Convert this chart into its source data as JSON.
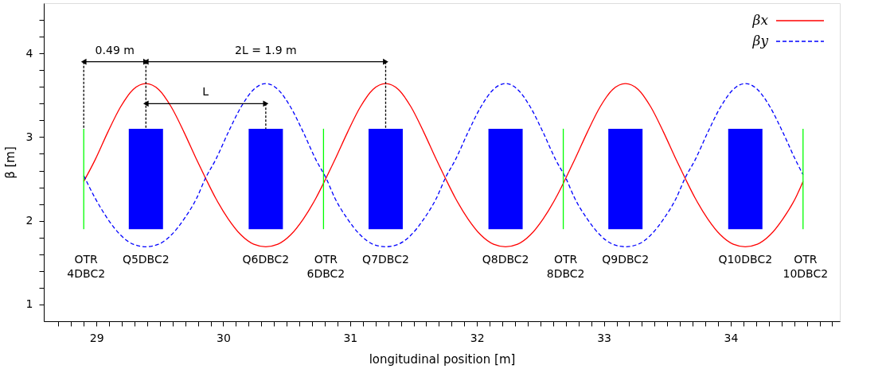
{
  "chart_data": {
    "type": "line",
    "xlabel": "longitudinal position [m]",
    "ylabel": "β [m]",
    "xlim": [
      28.585,
      34.86
    ],
    "ylim": [
      0.8,
      4.6
    ],
    "xticks": [
      {
        "value": 28.7,
        "label": null
      },
      {
        "value": 28.8,
        "label": null
      },
      {
        "value": 28.9,
        "label": null
      },
      29,
      {
        "value": 29.1,
        "label": null
      },
      {
        "value": 29.2,
        "label": null
      },
      {
        "value": 29.3,
        "label": null
      },
      {
        "value": 29.4,
        "label": null
      },
      {
        "value": 29.5,
        "label": null
      },
      {
        "value": 29.6,
        "label": null
      },
      {
        "value": 29.7,
        "label": null
      },
      {
        "value": 29.8,
        "label": null
      },
      {
        "value": 29.9,
        "label": null
      },
      30,
      {
        "value": 30.1,
        "label": null
      },
      {
        "value": 30.2,
        "label": null
      },
      {
        "value": 30.3,
        "label": null
      },
      {
        "value": 30.4,
        "label": null
      },
      {
        "value": 30.5,
        "label": null
      },
      {
        "value": 30.6,
        "label": null
      },
      {
        "value": 30.7,
        "label": null
      },
      {
        "value": 30.8,
        "label": null
      },
      {
        "value": 30.9,
        "label": null
      },
      31,
      {
        "value": 31.1,
        "label": null
      },
      {
        "value": 31.2,
        "label": null
      },
      {
        "value": 31.3,
        "label": null
      },
      {
        "value": 31.4,
        "label": null
      },
      {
        "value": 31.5,
        "label": null
      },
      {
        "value": 31.6,
        "label": null
      },
      {
        "value": 31.7,
        "label": null
      },
      {
        "value": 31.8,
        "label": null
      },
      {
        "value": 31.9,
        "label": null
      },
      32,
      {
        "value": 32.1,
        "label": null
      },
      {
        "value": 32.2,
        "label": null
      },
      {
        "value": 32.3,
        "label": null
      },
      {
        "value": 32.4,
        "label": null
      },
      {
        "value": 32.5,
        "label": null
      },
      {
        "value": 32.6,
        "label": null
      },
      {
        "value": 32.7,
        "label": null
      },
      {
        "value": 32.8,
        "label": null
      },
      {
        "value": 32.9,
        "label": null
      },
      33,
      {
        "value": 33.1,
        "label": null
      },
      {
        "value": 33.2,
        "label": null
      },
      {
        "value": 33.3,
        "label": null
      },
      {
        "value": 33.4,
        "label": null
      },
      {
        "value": 33.5,
        "label": null
      },
      {
        "value": 33.6,
        "label": null
      },
      {
        "value": 33.7,
        "label": null
      },
      {
        "value": 33.8,
        "label": null
      },
      {
        "value": 33.9,
        "label": null
      },
      34,
      {
        "value": 34.1,
        "label": null
      },
      {
        "value": 34.2,
        "label": null
      },
      {
        "value": 34.3,
        "label": null
      },
      {
        "value": 34.4,
        "label": null
      },
      {
        "value": 34.5,
        "label": null
      },
      {
        "value": 34.6,
        "label": null
      },
      {
        "value": 34.7,
        "label": null
      },
      {
        "value": 34.8,
        "label": null
      }
    ],
    "yticks": [
      1,
      {
        "value": 1.2,
        "label": null
      },
      {
        "value": 1.4,
        "label": null
      },
      {
        "value": 1.6,
        "label": null
      },
      {
        "value": 1.8,
        "label": null
      },
      2,
      {
        "value": 2.2,
        "label": null
      },
      {
        "value": 2.4,
        "label": null
      },
      {
        "value": 2.6,
        "label": null
      },
      {
        "value": 2.8,
        "label": null
      },
      3,
      {
        "value": 3.2,
        "label": null
      },
      {
        "value": 3.4,
        "label": null
      },
      {
        "value": 3.6,
        "label": null
      },
      {
        "value": 3.8,
        "label": null
      },
      4,
      {
        "value": 4.2,
        "label": null
      },
      {
        "value": 4.4,
        "label": null
      }
    ],
    "legend": "top right",
    "series": [
      {
        "type": "bar",
        "color": "#0000ff",
        "x": [
          29.39,
          30.335,
          31.28,
          32.225,
          33.17,
          34.115
        ],
        "base": [
          1.9,
          1.9,
          1.9,
          1.9,
          1.9,
          1.9
        ],
        "values": [
          1.2,
          1.2,
          1.2,
          1.2,
          1.2,
          1.2
        ]
      },
      {
        "name": "βx",
        "color": "#ff0000",
        "line_style": "solid",
        "x": [
          28.9,
          28.99,
          29.09,
          29.19,
          29.29,
          29.39,
          29.49,
          29.59,
          29.69,
          29.79,
          29.86,
          29.94,
          30.04,
          30.14,
          30.24,
          30.335,
          30.43,
          30.53,
          30.63,
          30.73,
          30.81,
          30.88,
          30.98,
          31.08,
          31.18,
          31.28,
          31.38,
          31.48,
          31.58,
          31.68,
          31.75,
          31.83,
          31.93,
          32.03,
          32.13,
          32.225,
          32.32,
          32.42,
          32.52,
          32.62,
          32.7,
          32.77,
          32.87,
          32.97,
          33.07,
          33.17,
          33.27,
          33.37,
          33.47,
          33.57,
          33.64,
          33.72,
          33.82,
          33.92,
          34.02,
          34.115,
          34.21,
          34.31,
          34.41,
          34.51,
          34.57
        ],
        "values": [
          2.47,
          2.73,
          3.06,
          3.36,
          3.57,
          3.64,
          3.57,
          3.36,
          3.06,
          2.73,
          2.51,
          2.27,
          2.02,
          1.83,
          1.72,
          1.69,
          1.72,
          1.83,
          2.02,
          2.27,
          2.51,
          2.73,
          3.06,
          3.36,
          3.57,
          3.64,
          3.57,
          3.36,
          3.06,
          2.73,
          2.51,
          2.27,
          2.02,
          1.83,
          1.72,
          1.69,
          1.72,
          1.83,
          2.02,
          2.27,
          2.51,
          2.73,
          3.06,
          3.36,
          3.57,
          3.64,
          3.57,
          3.36,
          3.06,
          2.73,
          2.51,
          2.27,
          2.02,
          1.83,
          1.72,
          1.69,
          1.72,
          1.83,
          2.02,
          2.27,
          2.47
        ]
      },
      {
        "name": "βy",
        "color": "#0000ff",
        "line_style": "dashed",
        "x": [
          28.9,
          28.99,
          29.09,
          29.19,
          29.29,
          29.39,
          29.49,
          29.59,
          29.69,
          29.79,
          29.86,
          29.94,
          30.04,
          30.14,
          30.24,
          30.335,
          30.43,
          30.53,
          30.63,
          30.73,
          30.81,
          30.88,
          30.98,
          31.08,
          31.18,
          31.28,
          31.38,
          31.48,
          31.58,
          31.68,
          31.75,
          31.83,
          31.93,
          32.03,
          32.13,
          32.225,
          32.32,
          32.42,
          32.52,
          32.62,
          32.7,
          32.77,
          32.87,
          32.97,
          33.07,
          33.17,
          33.27,
          33.37,
          33.47,
          33.57,
          33.64,
          33.72,
          33.82,
          33.92,
          34.02,
          34.115,
          34.21,
          34.31,
          34.41,
          34.51,
          34.57
        ],
        "values": [
          2.54,
          2.27,
          2.02,
          1.83,
          1.72,
          1.69,
          1.72,
          1.83,
          2.02,
          2.27,
          2.51,
          2.73,
          3.06,
          3.36,
          3.57,
          3.64,
          3.57,
          3.36,
          3.06,
          2.73,
          2.51,
          2.27,
          2.02,
          1.83,
          1.72,
          1.69,
          1.72,
          1.83,
          2.02,
          2.27,
          2.51,
          2.73,
          3.06,
          3.36,
          3.57,
          3.64,
          3.57,
          3.36,
          3.06,
          2.73,
          2.51,
          2.27,
          2.02,
          1.83,
          1.72,
          1.69,
          1.72,
          1.83,
          2.02,
          2.27,
          2.51,
          2.73,
          3.06,
          3.36,
          3.57,
          3.64,
          3.57,
          3.36,
          3.06,
          2.73,
          2.55
        ]
      },
      {
        "type": "line",
        "color": "#000000",
        "marker": "triangle",
        "x": [
          28.9,
          29.39
        ],
        "values": [
          3.9,
          3.9
        ]
      },
      {
        "type": "line",
        "color": "#000000",
        "marker": "triangle",
        "x": [
          29.39,
          31.28
        ],
        "values": [
          3.9,
          3.9
        ]
      },
      {
        "type": "line",
        "color": "#000000",
        "marker": "triangle",
        "x": [
          29.39,
          30.335
        ],
        "values": [
          3.4,
          3.4
        ]
      },
      {
        "type": "line",
        "color": "#000000",
        "line_style": "dashed",
        "x": [
          28.9,
          28.9
        ],
        "values": [
          3.9,
          3.1
        ]
      },
      {
        "type": "line",
        "color": "#000000",
        "line_style": "dashed",
        "x": [
          29.39,
          29.39
        ],
        "values": [
          3.9,
          3.1
        ]
      },
      {
        "type": "line",
        "color": "#000000",
        "line_style": "dashed",
        "x": [
          31.28,
          31.28
        ],
        "values": [
          3.9,
          3.1
        ]
      },
      {
        "type": "line",
        "color": "#000000",
        "line_style": "dashed",
        "x": [
          30.335,
          30.335
        ],
        "values": [
          3.4,
          3.1
        ]
      }
    ],
    "ref_lines": [
      {
        "axis": "x",
        "value": 28.9,
        "color": "#00ff00",
        "label": "OTR\n4DBC2"
      },
      {
        "axis": "x",
        "value": 30.79,
        "color": "#00ff00",
        "label": "OTR\n6DBC2"
      },
      {
        "axis": "x",
        "value": 32.68,
        "color": "#00ff00",
        "label": "OTR\n8DBC2"
      },
      {
        "axis": "x",
        "value": 34.57,
        "color": "#00ff00",
        "label": "OTR\n10DBC2"
      }
    ],
    "annotations": [
      {
        "text": "0.49 m",
        "x": 29.145,
        "y": 3.9
      },
      {
        "text": "2L = 1.9 m",
        "x": 30.335,
        "y": 3.9
      },
      {
        "text": "L",
        "x": 29.86,
        "y": 3.4
      },
      {
        "text": "Q5DBC2",
        "x": 29.39,
        "y": 1.9
      },
      {
        "text": "Q6DBC2",
        "x": 30.335,
        "y": 1.9
      },
      {
        "text": "Q7DBC2",
        "x": 31.28,
        "y": 1.9
      },
      {
        "text": "Q8DBC2",
        "x": 32.225,
        "y": 1.9
      },
      {
        "text": "Q9DBC2",
        "x": 33.17,
        "y": 1.9
      },
      {
        "text": "Q10DBC2",
        "x": 34.115,
        "y": 1.9
      }
    ]
  }
}
